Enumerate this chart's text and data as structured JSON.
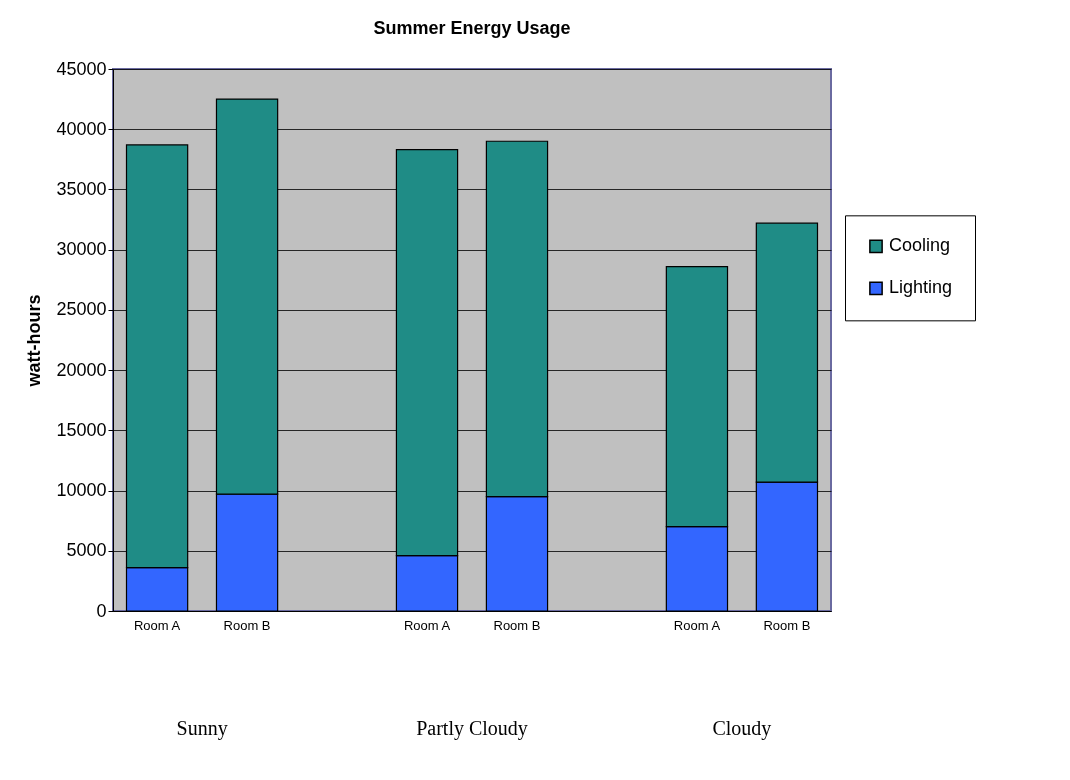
{
  "chart_data": {
    "type": "bar",
    "title": "Summer Energy Usage",
    "ylabel": "watt-hours",
    "categories": [
      "Room A",
      "Room B",
      null,
      "Room A",
      "Room B",
      null,
      "Room A",
      "Room B"
    ],
    "stacked": true,
    "series": [
      {
        "name": "Lighting",
        "color": "#3366ff",
        "values": [
          3600,
          9700,
          null,
          4600,
          9500,
          null,
          7000,
          10700
        ]
      },
      {
        "name": "Cooling",
        "color": "#1f8c86",
        "values": [
          35100,
          32800,
          null,
          33700,
          29500,
          null,
          21600,
          21500
        ]
      }
    ],
    "ylim": [
      0,
      45000
    ],
    "yticks": [
      0,
      5000,
      10000,
      15000,
      20000,
      25000,
      30000,
      35000,
      40000,
      45000
    ],
    "grid": "y",
    "legend": "right",
    "annotations": [
      "Sunny",
      "Partly Cloudy",
      "Cloudy"
    ]
  }
}
